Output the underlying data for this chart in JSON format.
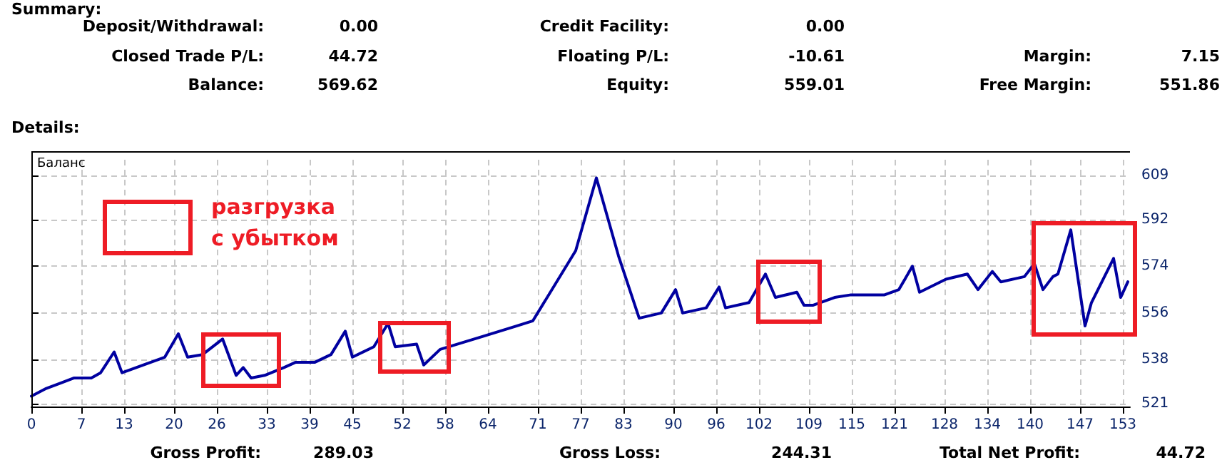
{
  "chart_data": {
    "type": "line",
    "ylabel": "Баланс",
    "x": [
      0,
      2.1,
      4.1,
      6,
      8.4,
      9.7,
      11.6,
      12.7,
      14.7,
      18.7,
      20.6,
      21.9,
      24,
      26.8,
      28.7,
      29.7,
      30.8,
      32.7,
      35.4,
      37,
      39.7,
      42,
      44,
      45,
      48,
      50,
      51,
      54,
      55,
      57.3,
      63.3,
      68,
      70.3,
      76.3,
      79.2,
      82.3,
      85.2,
      88.3,
      90.3,
      91.3,
      94.6,
      96.4,
      97.3,
      100.6,
      102.9,
      104.3,
      107.3,
      108.3,
      109.6,
      112.6,
      114.9,
      118.6,
      119.6,
      121.6,
      123.5,
      124.5,
      128.2,
      131.2,
      132.7,
      134.7,
      135.9,
      139.2,
      140.6,
      141.8,
      143.2,
      143.9,
      145.7,
      147.7,
      148.6,
      151.7,
      152.7,
      153.7
    ],
    "series": [
      {
        "color": "#0000a0",
        "values": [
          524,
          527,
          529,
          531,
          531,
          533,
          541,
          533,
          535,
          539,
          548,
          539,
          540,
          546,
          532,
          535,
          531,
          532,
          535,
          537,
          537,
          540,
          549,
          539,
          543,
          552,
          543,
          544,
          536,
          542,
          547,
          551,
          553,
          580,
          608,
          578,
          554,
          556,
          565,
          556,
          558,
          566,
          558,
          560,
          571,
          562,
          564,
          559,
          559,
          562,
          563,
          563,
          563,
          565,
          574,
          564,
          569,
          571,
          565,
          572,
          568,
          570,
          575,
          565,
          570,
          571,
          588,
          551,
          560,
          577,
          562,
          568
        ]
      }
    ],
    "xlim": [
      0,
      154
    ],
    "xticks": [
      0,
      7,
      13,
      20,
      26,
      33,
      39,
      45,
      52,
      58,
      64,
      71,
      77,
      83,
      90,
      96,
      102,
      109,
      115,
      121,
      128,
      134,
      140,
      147,
      153
    ],
    "ylim": [
      520,
      615
    ],
    "yticks": [
      521,
      538,
      556,
      574,
      592,
      609
    ],
    "grid": true,
    "marker": "none",
    "line_style": "solid",
    "annotations": [
      "Summary:",
      "Deposit/Withdrawal:",
      "0.00",
      "Credit Facility:",
      "0.00",
      "Closed Trade P/L:",
      "44.72",
      "Floating P/L:",
      "-10.61",
      "Margin:",
      "7.15",
      "Balance:",
      "569.62",
      "Equity:",
      "559.01",
      "Free Margin:",
      "551.86",
      "Details:",
      "разгрузка\nс убытком",
      "Gross Profit:",
      "289.03",
      "Gross Loss:",
      "244.31",
      "Total Net Profit:",
      "44.72"
    ]
  }
}
